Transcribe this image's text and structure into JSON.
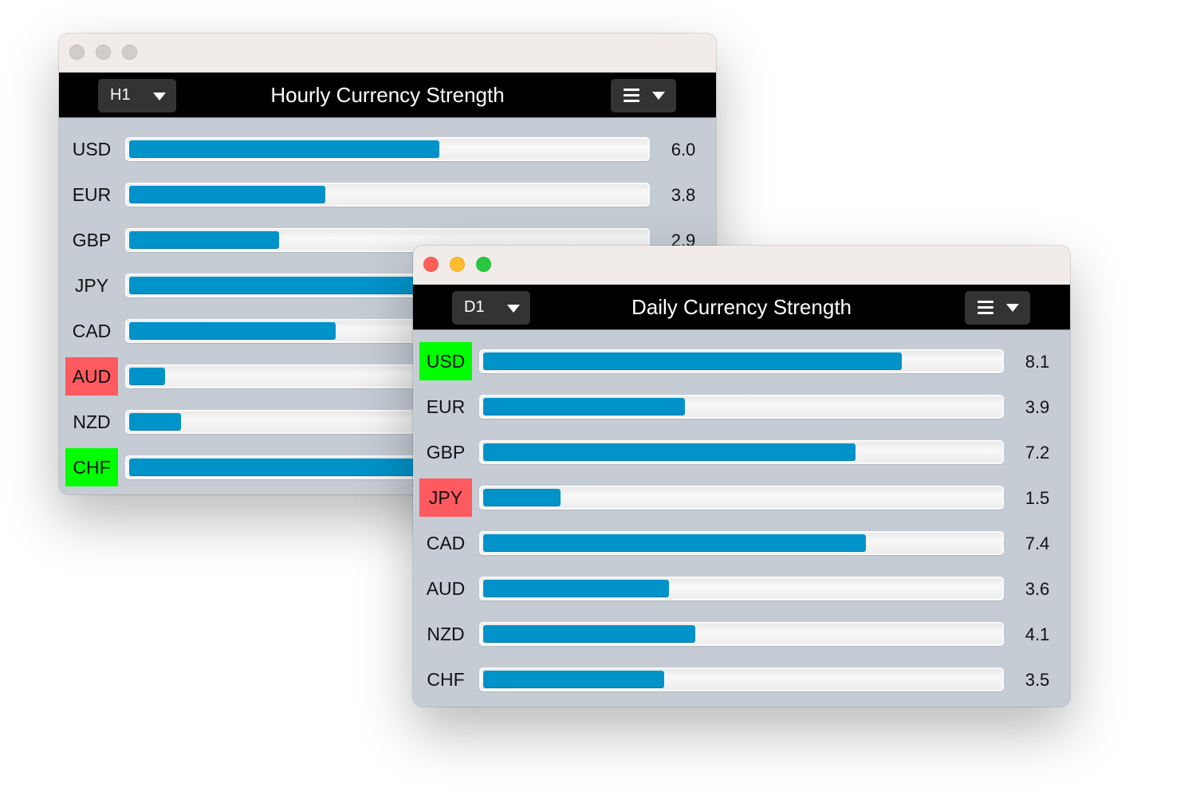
{
  "colors": {
    "bar": "#0093c9",
    "strongest": "#00ff00",
    "weakest": "#ff5a5f",
    "header": "#000000",
    "panel": "#c5ccd4"
  },
  "scale_max": 10,
  "windows": [
    {
      "id": "hourly",
      "traffic_lights": "inactive",
      "timeframe": "H1",
      "title": "Hourly Currency Strength",
      "menu_icon": "hamburger-menu-icon",
      "rows": [
        {
          "currency": "USD",
          "value": 6.0,
          "label": "6.0",
          "highlight": ""
        },
        {
          "currency": "EUR",
          "value": 3.8,
          "label": "3.8",
          "highlight": ""
        },
        {
          "currency": "GBP",
          "value": 2.9,
          "label": "2.9",
          "highlight": ""
        },
        {
          "currency": "JPY",
          "value": 6.5,
          "label": "",
          "highlight": ""
        },
        {
          "currency": "CAD",
          "value": 4.0,
          "label": "",
          "highlight": ""
        },
        {
          "currency": "AUD",
          "value": 0.7,
          "label": "",
          "highlight": "weakest"
        },
        {
          "currency": "NZD",
          "value": 1.0,
          "label": "",
          "highlight": ""
        },
        {
          "currency": "CHF",
          "value": 7.0,
          "label": "",
          "highlight": "strongest"
        }
      ]
    },
    {
      "id": "daily",
      "traffic_lights": "active",
      "timeframe": "D1",
      "title": "Daily Currency Strength",
      "menu_icon": "hamburger-menu-icon",
      "rows": [
        {
          "currency": "USD",
          "value": 8.1,
          "label": "8.1",
          "highlight": "strongest"
        },
        {
          "currency": "EUR",
          "value": 3.9,
          "label": "3.9",
          "highlight": ""
        },
        {
          "currency": "GBP",
          "value": 7.2,
          "label": "7.2",
          "highlight": ""
        },
        {
          "currency": "JPY",
          "value": 1.5,
          "label": "1.5",
          "highlight": "weakest"
        },
        {
          "currency": "CAD",
          "value": 7.4,
          "label": "7.4",
          "highlight": ""
        },
        {
          "currency": "AUD",
          "value": 3.6,
          "label": "3.6",
          "highlight": ""
        },
        {
          "currency": "NZD",
          "value": 4.1,
          "label": "4.1",
          "highlight": ""
        },
        {
          "currency": "CHF",
          "value": 3.5,
          "label": "3.5",
          "highlight": ""
        }
      ]
    }
  ]
}
